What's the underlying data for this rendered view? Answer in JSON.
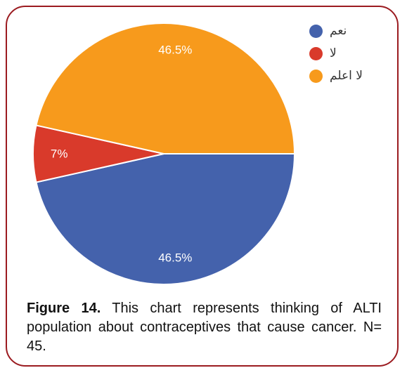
{
  "chart_data": {
    "type": "pie",
    "title": "",
    "slices": [
      {
        "label": "نعم",
        "value": 46.5,
        "display": "46.5%",
        "color": "#4462ac"
      },
      {
        "label": "لا",
        "value": 7,
        "display": "7%",
        "color": "#d93a2b"
      },
      {
        "label": "لا اعلم",
        "value": 46.5,
        "display": "46.5%",
        "color": "#f79a1c"
      }
    ],
    "legend_position": "top-right",
    "start_angle": "3 o'clock",
    "direction": "clockwise"
  },
  "caption": {
    "label": "Figure 14.",
    "text": " This chart represents thinking of ALTI population about contraceptives that cause cancer. N= 45."
  },
  "colors": {
    "border": "#9b1b20",
    "slice_label_text": "#ffffff"
  }
}
